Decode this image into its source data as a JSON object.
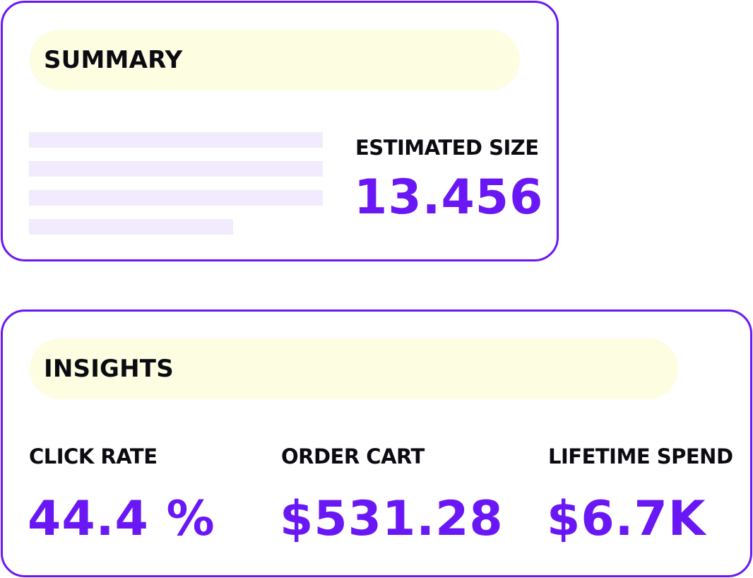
{
  "summary": {
    "title": "SUMMARY",
    "estimated_size_label": "ESTIMATED SIZE",
    "estimated_size_value": "13.456"
  },
  "insights": {
    "title": "INSIGHTS",
    "metrics": [
      {
        "label": "CLICK RATE",
        "value": "44.4 %"
      },
      {
        "label": "ORDER CART",
        "value": "$531.28"
      },
      {
        "label": "LIFETIME SPEND",
        "value": "$6.7K"
      }
    ]
  },
  "colors": {
    "accent": "#6a17f5",
    "header_background": "#fcfde1",
    "placeholder_bar": "#f1ebfd",
    "text": "#0b0b12"
  }
}
